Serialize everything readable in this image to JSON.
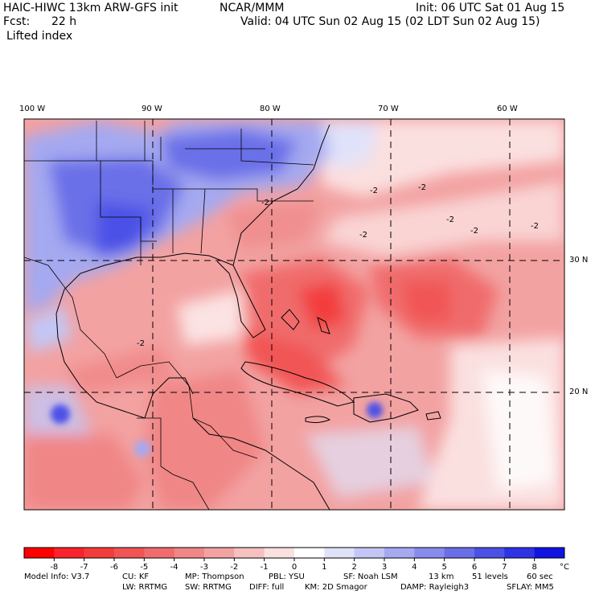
{
  "header": {
    "model": "HAIC-HIWC 13km ARW-GFS init",
    "org": "NCAR/MMM",
    "init": "Init: 06 UTC Sat 01 Aug 15",
    "fcst_label": "Fcst:",
    "fcst_value": "22 h",
    "valid": "Valid: 04 UTC Sun 02 Aug 15 (02 LDT Sun 02 Aug 15)",
    "field": "Lifted index"
  },
  "map": {
    "lon_labels": [
      "100 W",
      "90 W",
      "80 W",
      "70 W",
      "60 W"
    ],
    "lat_labels": [
      "30 N",
      "20 N"
    ],
    "contour_labels": [
      "-2",
      "-2",
      "-2",
      "-2",
      "-2",
      "-2",
      "-2",
      "-2"
    ]
  },
  "colorbar": {
    "ticks": [
      "-8",
      "-7",
      "-6",
      "-5",
      "-4",
      "-3",
      "-2",
      "-1",
      "0",
      "1",
      "2",
      "3",
      "4",
      "5",
      "6",
      "7",
      "8"
    ],
    "unit": "°C",
    "colors": [
      "#ff0000",
      "#f9232c",
      "#f33c3c",
      "#f15454",
      "#f06c6c",
      "#f08686",
      "#f3a2a2",
      "#f7c0c0",
      "#fbe0e0",
      "#ffffff",
      "#e0e2fa",
      "#c3c6f5",
      "#a5a9f0",
      "#878cec",
      "#6a6fe8",
      "#4c51e6",
      "#2e33e4",
      "#1014e0"
    ]
  },
  "footer": {
    "line1": [
      "Model Info: V3.7",
      "CU: KF",
      "MP: Thompson",
      "PBL: YSU",
      "SF: Noah LSM",
      "13 km",
      "51 levels",
      "60 sec"
    ],
    "line2": [
      "LW: RRTMG",
      "SW: RRTMG",
      "DIFF: full",
      "KM: 2D Smagor",
      "DAMP: Rayleigh3",
      "SFLAY: MM5"
    ]
  }
}
